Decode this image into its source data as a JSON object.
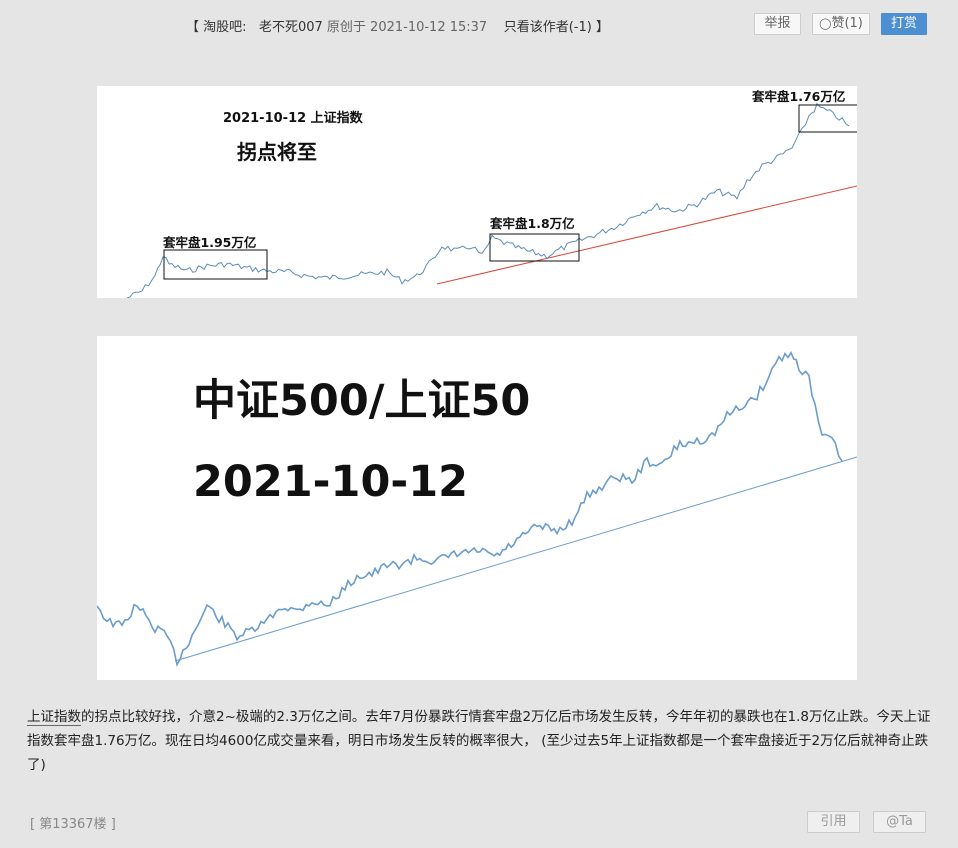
{
  "post_meta": {
    "open_bracket": "【",
    "forum": "淘股吧:",
    "author": "老不死007",
    "original": "原创于 2021-10-12 15:37",
    "only_author": "只看该作者(-1)",
    "close_bracket": "】"
  },
  "actions": {
    "report": "举报",
    "like": "赞(1)",
    "tip": "打赏"
  },
  "figure1": {
    "date_title": "2021-10-12 上证指数",
    "subtitle": "拐点将至",
    "box1": "套牢盘1.95万亿",
    "box2": "套牢盘1.8万亿",
    "box3": "套牢盘1.76万亿",
    "line_color": "#5b8db8",
    "trend_color": "#d94a3a"
  },
  "figure2": {
    "title": "中证500/上证50",
    "date": "2021-10-12",
    "line_color": "#6a9ccc"
  },
  "body": {
    "link_text": "上证指数",
    "text": "的拐点比较好找，介意2~极端的2.3万亿之间。去年7月份暴跌行情套牢盘2万亿后市场发生反转，今年年初的暴跌也在1.8万亿止跌。今天上证指数套牢盘1.76万亿。现在日均4600亿成交量来看，明日市场发生反转的概率很大，  (至少过去5年上证指数都是一个套牢盘接近于2万亿后就神奇止跌了)"
  },
  "footer": {
    "floor": "[ 第13367楼 ]",
    "quote": "引用",
    "at": "@Ta"
  }
}
